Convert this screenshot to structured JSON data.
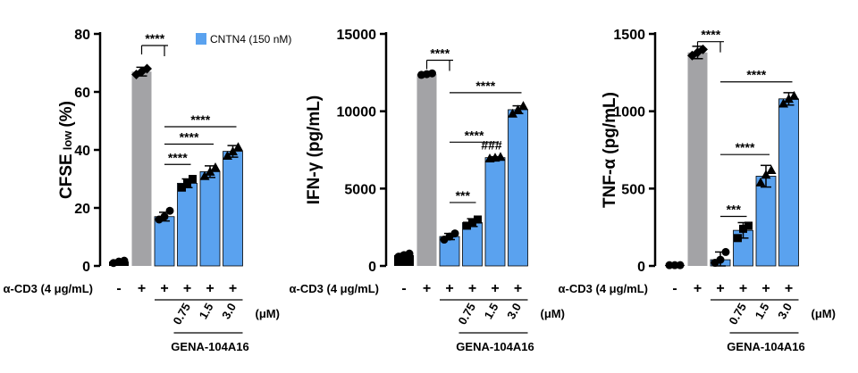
{
  "legend": {
    "label": "CNTN4 (150 nM)",
    "color": "#5aa2ef"
  },
  "colors": {
    "control": "#000000",
    "gray": "#a3a3a6",
    "blue": "#5aa2ef"
  },
  "chart_data": [
    {
      "type": "bar",
      "ylabel": [
        "CFSE",
        "low",
        "(%)"
      ],
      "ylim": [
        0,
        80
      ],
      "yticks": [
        0,
        20,
        40,
        60,
        80
      ],
      "categories": [
        "-/-",
        "+/-",
        "+/CNTN4",
        "+/CNTN4 + GENA 0.75",
        "+/CNTN4 + GENA 1.5",
        "+/CNTN4 + GENA 3.0"
      ],
      "values": [
        1.5,
        67,
        17,
        28.5,
        32.5,
        39.5
      ],
      "errors": [
        0.5,
        1.5,
        1.5,
        1.5,
        2.0,
        2.0
      ],
      "points": [
        [
          1,
          1.5,
          1.8
        ],
        [
          66,
          67,
          68
        ],
        [
          16,
          17,
          19
        ],
        [
          27,
          28.5,
          30
        ],
        [
          31,
          32.5,
          34
        ],
        [
          38,
          39.5,
          41
        ]
      ],
      "markers": [
        "circle",
        "diamond",
        "circle",
        "square",
        "triangle",
        "triangle"
      ],
      "bar_colors": [
        "control",
        "gray",
        "blue",
        "blue",
        "blue",
        "blue"
      ],
      "significance": [
        {
          "label": "****",
          "from": 1,
          "to": 2,
          "y": 76
        },
        {
          "label": "****",
          "from": 2,
          "to": 5,
          "y": 48
        },
        {
          "label": "****",
          "from": 2,
          "to": 4,
          "y": 42
        },
        {
          "label": "****",
          "from": 2,
          "to": 3,
          "y": 35
        }
      ],
      "annotations": []
    },
    {
      "type": "bar",
      "ylabel": [
        "IFN-",
        "γ",
        " (pg/mL)"
      ],
      "ylim": [
        0,
        15000
      ],
      "yticks": [
        0,
        5000,
        10000,
        15000
      ],
      "categories": [
        "-/-",
        "+/-",
        "+/CNTN4",
        "+/CNTN4 + GENA 0.75",
        "+/CNTN4 + GENA 1.5",
        "+/CNTN4 + GENA 3.0"
      ],
      "values": [
        700,
        12400,
        1900,
        2800,
        7000,
        10100
      ],
      "errors": [
        100,
        80,
        200,
        250,
        60,
        250
      ],
      "points": [
        [
          600,
          700,
          800
        ],
        [
          12350,
          12400,
          12450
        ],
        [
          1700,
          1900,
          2100
        ],
        [
          2600,
          2800,
          3000
        ],
        [
          6950,
          7000,
          7050
        ],
        [
          9850,
          10100,
          10350
        ]
      ],
      "markers": [
        "circle",
        "circle",
        "circle",
        "square",
        "triangle",
        "triangle"
      ],
      "bar_colors": [
        "control",
        "gray",
        "blue",
        "blue",
        "blue",
        "blue"
      ],
      "significance": [
        {
          "label": "****",
          "from": 1,
          "to": 2,
          "y": 13300
        },
        {
          "label": "****",
          "from": 2,
          "to": 5,
          "y": 11200
        },
        {
          "label": "****",
          "from": 2,
          "to": 4,
          "y": 8000
        },
        {
          "label": "***",
          "from": 2,
          "to": 3,
          "y": 4100
        }
      ],
      "annotations": [
        {
          "label": "###",
          "bar": 4,
          "y": 7400
        }
      ]
    },
    {
      "type": "bar",
      "ylabel": [
        "TNF-",
        "α",
        " (pg/mL)"
      ],
      "ylim": [
        0,
        1500
      ],
      "yticks": [
        0,
        500,
        1000,
        1500
      ],
      "categories": [
        "-/-",
        "+/-",
        "+/CNTN4",
        "+/CNTN4 + GENA 0.75",
        "+/CNTN4 + GENA 1.5",
        "+/CNTN4 + GENA 3.0"
      ],
      "values": [
        5,
        1380,
        40,
        230,
        580,
        1080
      ],
      "errors": [
        3,
        40,
        50,
        50,
        70,
        40
      ],
      "points": [
        [
          5,
          5,
          5
        ],
        [
          1360,
          1380,
          1400
        ],
        [
          20,
          40,
          90
        ],
        [
          180,
          240,
          260
        ],
        [
          540,
          590,
          620
        ],
        [
          1050,
          1080,
          1100
        ]
      ],
      "markers": [
        "circle",
        "diamond",
        "circle",
        "square",
        "triangle",
        "triangle"
      ],
      "bar_colors": [
        "control",
        "gray",
        "blue",
        "blue",
        "blue",
        "blue"
      ],
      "significance": [
        {
          "label": "****",
          "from": 1,
          "to": 2,
          "y": 1450
        },
        {
          "label": "****",
          "from": 2,
          "to": 5,
          "y": 1190
        },
        {
          "label": "****",
          "from": 2,
          "to": 4,
          "y": 720
        },
        {
          "label": "***",
          "from": 2,
          "to": 3,
          "y": 320
        }
      ],
      "annotations": []
    }
  ],
  "conditions": {
    "acd3_label": "α-CD3 (4 μg/mL)",
    "acd3_signs": [
      "-",
      "+",
      "+",
      "+",
      "+",
      "+"
    ],
    "doses": [
      "0.75",
      "1.5",
      "3.0"
    ],
    "unit": "(μM)",
    "drug": "GENA-104A16"
  }
}
